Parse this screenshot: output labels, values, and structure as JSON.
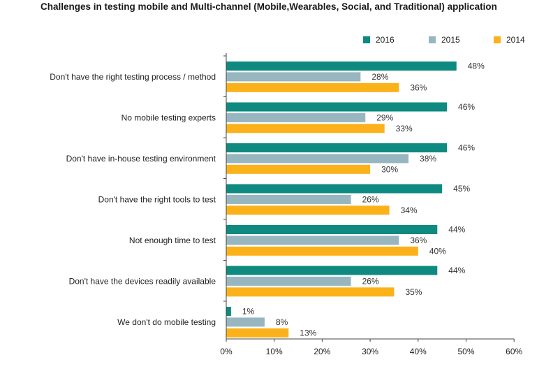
{
  "chart_data": {
    "type": "bar",
    "orientation": "horizontal",
    "title": "Challenges in testing mobile and Multi-channel (Mobile,Wearables, Social, and Traditional) application",
    "categories": [
      "Don't have the right testing process / method",
      "No mobile testing experts",
      "Don't have in-house testing environment",
      "Don't have the right tools to test",
      "Not enough time to test",
      "Don't have the devices readily available",
      "We don't do mobile testing"
    ],
    "series": [
      {
        "name": "2016",
        "color": "#0e8a80",
        "values": [
          48,
          46,
          46,
          45,
          44,
          44,
          1
        ]
      },
      {
        "name": "2015",
        "color": "#97b6c0",
        "values": [
          28,
          29,
          38,
          26,
          36,
          26,
          8
        ]
      },
      {
        "name": "2014",
        "color": "#fbb21a",
        "values": [
          36,
          33,
          30,
          34,
          40,
          35,
          13
        ]
      }
    ],
    "value_suffix": "%",
    "xlim": [
      0,
      60
    ],
    "xticks": [
      0,
      10,
      20,
      30,
      40,
      50,
      60
    ],
    "xtick_labels": [
      "0%",
      "10%",
      "20%",
      "30%",
      "40%",
      "50%",
      "60%"
    ],
    "xlabel": "",
    "ylabel": "",
    "grid": false,
    "legend_position": "top-right"
  }
}
